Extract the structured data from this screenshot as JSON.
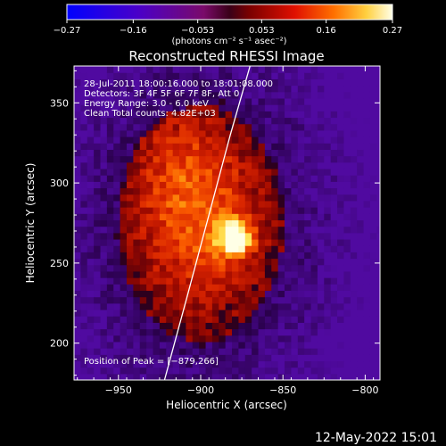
{
  "chart_data": {
    "type": "heatmap",
    "title": "Reconstructed RHESSI Image",
    "xlabel": "Heliocentric X (arcsec)",
    "ylabel": "Heliocentric Y (arcsec)",
    "xlim": [
      -977,
      -791
    ],
    "ylim": [
      177,
      373
    ],
    "x_ticks": [
      -950,
      -900,
      -850,
      -800
    ],
    "x_tick_labels": [
      "−950",
      "−900",
      "−850",
      "−800"
    ],
    "y_ticks": [
      200,
      250,
      300,
      350
    ],
    "y_tick_labels": [
      "200",
      "250",
      "300",
      "350"
    ],
    "colorbar": {
      "range": [
        -0.27,
        0.27
      ],
      "ticks": [
        -0.27,
        -0.16,
        -0.053,
        0.053,
        0.16,
        0.27
      ],
      "tick_labels": [
        "−0.27",
        "−0.16",
        "−0.053",
        "0.053",
        "0.16",
        "0.27"
      ],
      "units": "(photons cm⁻² s⁻¹ asec⁻²)"
    },
    "annotations": [
      "28-Jul-2011 18:00:16.000 to 18:01:08.000",
      "Detectors: 3F 4F 5F 6F 7F 8F, Att 0",
      "Energy Range: 3.0 - 6.0 keV",
      "Clean    Total counts: 4.82E+03"
    ],
    "peak_label": "Position of Peak = [−879,266]",
    "peak": {
      "x": -879,
      "y": 266
    },
    "limb_curve": [
      [
        -922,
        177
      ],
      [
        -908,
        230
      ],
      [
        -895,
        280
      ],
      [
        -882,
        330
      ],
      [
        -870,
        373
      ]
    ],
    "grid": false,
    "legend": "none"
  },
  "footer": {
    "timestamp": "12-May-2022 15:01"
  }
}
